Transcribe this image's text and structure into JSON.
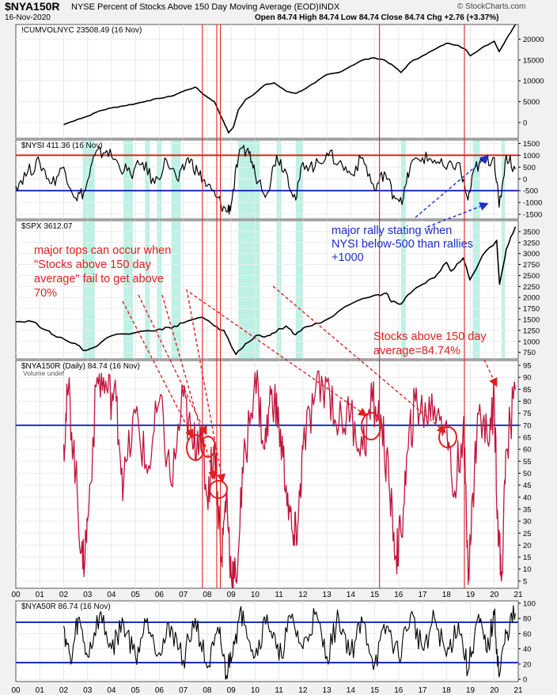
{
  "header": {
    "symbol": "$NYA150R",
    "description": "NYSE Percent of Stocks Above 150 Day Moving Average (EOD)",
    "exchange": "INDX",
    "date": "16-Nov-2020",
    "ohlc": "Open 84.74  High 84.74  Low 84.74  Close 84.74  Chg +2.76 (+3.37%)",
    "watermark": "© StockCharts.com"
  },
  "chart_data": [
    {
      "type": "line",
      "title": "!CUMVOLNYC 23508.49 (16 Nov)",
      "ytick_labels": [
        "20000",
        "15000",
        "10000",
        "5000",
        "0"
      ],
      "yticks": [
        20000,
        15000,
        10000,
        5000,
        0
      ],
      "ylim": [
        -3800,
        23500
      ],
      "x": [
        2002.0,
        2002.6,
        2003.0,
        2003.5,
        2004.0,
        2004.5,
        2005.0,
        2005.5,
        2006.0,
        2006.5,
        2007.0,
        2007.5,
        2007.9,
        2008.3,
        2008.7,
        2008.9,
        2009.1,
        2009.3,
        2009.6,
        2010.0,
        2010.4,
        2010.8,
        2011.3,
        2011.7,
        2012.0,
        2012.5,
        2013.0,
        2013.5,
        2014.0,
        2014.5,
        2015.0,
        2015.4,
        2015.8,
        2016.1,
        2016.5,
        2017.0,
        2017.5,
        2018.0,
        2018.5,
        2018.8,
        2019.0,
        2019.5,
        2020.0,
        2020.2,
        2020.5,
        2020.88
      ],
      "values": [
        -500,
        800,
        1500,
        2800,
        3500,
        4000,
        4500,
        5200,
        5800,
        6300,
        7500,
        8500,
        6500,
        5000,
        0,
        -2500,
        -1000,
        3000,
        5500,
        7000,
        9000,
        9500,
        7500,
        7000,
        7800,
        9500,
        11500,
        12000,
        13500,
        15000,
        15500,
        15000,
        13500,
        12000,
        14500,
        16000,
        17500,
        19000,
        18500,
        17500,
        16000,
        18000,
        19500,
        17000,
        20000,
        23508
      ]
    },
    {
      "type": "line",
      "title": "$NYSI 411.36 (16 Nov)",
      "ytick_labels": [
        "1500",
        "1000",
        "500",
        "0",
        "-500",
        "-1000",
        "-1500"
      ],
      "yticks": [
        1500,
        1000,
        500,
        0,
        -500,
        -1000,
        -1500
      ],
      "ylim": [
        -1700,
        1650
      ],
      "reference_lines": [
        1000,
        -500
      ],
      "x": [
        2000.0,
        2000.5,
        2001.0,
        2001.5,
        2002.0,
        2002.5,
        2002.9,
        2003.3,
        2003.8,
        2004.3,
        2004.8,
        2005.3,
        2005.8,
        2006.3,
        2006.8,
        2007.2,
        2007.6,
        2008.0,
        2008.4,
        2008.8,
        2009.0,
        2009.3,
        2009.7,
        2010.0,
        2010.5,
        2010.9,
        2011.3,
        2011.7,
        2012.0,
        2012.5,
        2013.0,
        2013.5,
        2014.0,
        2014.5,
        2015.0,
        2015.4,
        2015.8,
        2016.2,
        2016.5,
        2017.0,
        2017.5,
        2018.0,
        2018.5,
        2018.9,
        2019.2,
        2019.6,
        2020.0,
        2020.2,
        2020.5,
        2020.88
      ],
      "values": [
        -300,
        300,
        700,
        -200,
        500,
        -800,
        -500,
        1000,
        1200,
        600,
        200,
        700,
        -200,
        800,
        -100,
        900,
        300,
        -300,
        -800,
        -1400,
        -1100,
        900,
        1300,
        200,
        -600,
        1000,
        300,
        -900,
        700,
        500,
        1100,
        700,
        200,
        900,
        -500,
        300,
        -700,
        -800,
        600,
        900,
        800,
        400,
        700,
        -900,
        500,
        700,
        900,
        -1200,
        1000,
        411
      ]
    },
    {
      "type": "line",
      "title": "$SPX 3612.07",
      "ytick_labels": [
        "3500",
        "3250",
        "3000",
        "2750",
        "2500",
        "2250",
        "2000",
        "1750",
        "1500",
        "1250",
        "1000",
        "750"
      ],
      "yticks": [
        3500,
        3250,
        3000,
        2750,
        2500,
        2250,
        2000,
        1750,
        1500,
        1250,
        1000,
        750
      ],
      "ylim": [
        600,
        3750
      ],
      "x": [
        2000.0,
        2000.7,
        2001.3,
        2001.7,
        2002.5,
        2002.8,
        2003.2,
        2004.0,
        2005.0,
        2006.0,
        2006.5,
        2007.0,
        2007.8,
        2008.3,
        2008.7,
        2009.0,
        2009.2,
        2009.6,
        2010.0,
        2010.4,
        2010.7,
        2011.3,
        2011.7,
        2012.0,
        2012.5,
        2013.0,
        2014.0,
        2015.0,
        2015.5,
        2015.7,
        2016.1,
        2016.5,
        2017.0,
        2017.5,
        2018.0,
        2018.2,
        2018.7,
        2018.98,
        2019.5,
        2020.1,
        2020.22,
        2020.5,
        2020.88
      ],
      "values": [
        1450,
        1450,
        1250,
        1100,
        950,
        800,
        850,
        1130,
        1200,
        1280,
        1300,
        1420,
        1550,
        1350,
        1250,
        900,
        700,
        950,
        1120,
        1100,
        1180,
        1350,
        1150,
        1300,
        1400,
        1500,
        1850,
        2050,
        2100,
        1900,
        1850,
        2100,
        2300,
        2450,
        2800,
        2600,
        2900,
        2400,
        2950,
        3300,
        2300,
        3100,
        3612
      ]
    },
    {
      "type": "line",
      "title": "$NYA150R (Daily) 84.74 (16 Nov)",
      "subtitle": "Volume undef",
      "ytick_labels": [
        "95",
        "90",
        "85",
        "80",
        "75",
        "70",
        "65",
        "60",
        "55",
        "50",
        "45",
        "40",
        "35",
        "30",
        "25",
        "20",
        "15",
        "10",
        "5"
      ],
      "yticks": [
        95,
        90,
        85,
        80,
        75,
        70,
        65,
        60,
        55,
        50,
        45,
        40,
        35,
        30,
        25,
        20,
        15,
        10,
        5
      ],
      "ylim": [
        2,
        97
      ],
      "reference_lines": [
        70
      ],
      "x": [
        2002.0,
        2002.2,
        2002.5,
        2002.8,
        2003.0,
        2003.4,
        2003.8,
        2004.2,
        2004.5,
        2005.0,
        2005.5,
        2006.0,
        2006.5,
        2007.0,
        2007.4,
        2007.7,
        2008.0,
        2008.3,
        2008.6,
        2008.8,
        2009.0,
        2009.2,
        2009.5,
        2010.0,
        2010.4,
        2010.7,
        2011.0,
        2011.3,
        2011.6,
        2011.8,
        2012.0,
        2012.5,
        2013.0,
        2013.5,
        2014.0,
        2014.5,
        2014.9,
        2015.3,
        2015.6,
        2015.9,
        2016.1,
        2016.4,
        2016.7,
        2017.0,
        2017.5,
        2018.0,
        2018.3,
        2018.7,
        2018.9,
        2019.0,
        2019.3,
        2019.7,
        2020.0,
        2020.15,
        2020.3,
        2020.5,
        2020.88
      ],
      "values": [
        62,
        85,
        50,
        10,
        30,
        90,
        85,
        80,
        45,
        75,
        50,
        80,
        45,
        82,
        60,
        70,
        40,
        62,
        15,
        42,
        8,
        5,
        50,
        92,
        60,
        85,
        70,
        45,
        20,
        30,
        60,
        82,
        88,
        70,
        75,
        60,
        80,
        70,
        45,
        15,
        25,
        60,
        80,
        75,
        78,
        72,
        40,
        70,
        12,
        20,
        75,
        65,
        80,
        30,
        5,
        60,
        84.74
      ]
    },
    {
      "type": "line",
      "title": "$NYA50R 86.74 (16 Nov)",
      "ytick_labels": [
        "100",
        "80",
        "60",
        "40",
        "20",
        "0"
      ],
      "yticks": [
        100,
        80,
        60,
        40,
        20,
        0
      ],
      "ylim": [
        -3,
        103
      ],
      "reference_lines": [
        75,
        22
      ],
      "x": [
        2002.0,
        2002.3,
        2002.6,
        2003.0,
        2003.5,
        2004.0,
        2004.5,
        2005.0,
        2005.5,
        2006.0,
        2006.5,
        2007.0,
        2007.5,
        2008.0,
        2008.5,
        2008.8,
        2009.1,
        2009.5,
        2010.0,
        2010.5,
        2011.0,
        2011.5,
        2012.0,
        2012.5,
        2013.0,
        2013.5,
        2014.0,
        2014.5,
        2015.0,
        2015.5,
        2016.0,
        2016.5,
        2017.0,
        2017.5,
        2018.0,
        2018.5,
        2018.9,
        2019.3,
        2019.7,
        2020.0,
        2020.2,
        2020.5,
        2020.88
      ],
      "values": [
        70,
        20,
        80,
        30,
        85,
        40,
        75,
        30,
        80,
        35,
        70,
        25,
        80,
        15,
        60,
        5,
        50,
        90,
        30,
        85,
        25,
        80,
        40,
        85,
        30,
        80,
        35,
        75,
        20,
        70,
        30,
        85,
        40,
        80,
        30,
        75,
        10,
        80,
        35,
        85,
        3,
        60,
        86.74
      ]
    }
  ],
  "x_axis": {
    "labels": [
      "00",
      "01",
      "02",
      "03",
      "04",
      "05",
      "06",
      "07",
      "08",
      "09",
      "10",
      "11",
      "12",
      "13",
      "14",
      "15",
      "16",
      "17",
      "18",
      "19",
      "20",
      "21"
    ]
  },
  "vertical_markers": [
    2007.8,
    2008.4,
    2008.55,
    2015.2,
    2018.75
  ],
  "annotations": {
    "red_note": [
      "major tops can occur when",
      "\"Stocks above 150 day",
      "average\" fail to get above",
      "70%"
    ],
    "blue_note": [
      "major rally stating when",
      "NYSI below-500 than rallies",
      "+1000"
    ],
    "red_note2": [
      "Stocks above 150 day",
      "average=84.74%"
    ]
  },
  "colors": {
    "cumvol_line": "#000000",
    "nysi_line": "#000000",
    "spx_line": "#000000",
    "nya150r_line": "#c0143c",
    "nya50r_line": "#000000",
    "red_reference": "#e02020",
    "blue_reference": "#1a2ecc",
    "shading": "#a8ecdc",
    "annotation_red": "#e02020",
    "annotation_blue": "#1a2ecc"
  }
}
